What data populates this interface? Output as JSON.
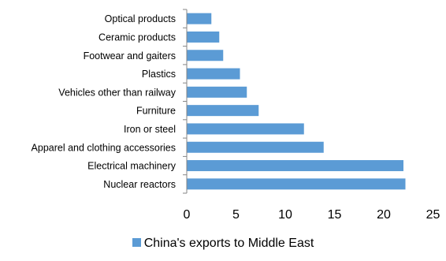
{
  "chart_data": {
    "type": "bar",
    "orientation": "horizontal",
    "categories": [
      "Nuclear reactors",
      "Electrical machinery",
      "Apparel and clothing accessories",
      "Iron or steel",
      "Furniture",
      "Vehicles other than railway",
      "Plastics",
      "Footwear and gaiters",
      "Ceramic products",
      "Optical products"
    ],
    "series": [
      {
        "name": "China's exports to Middle East",
        "values": [
          22.2,
          22.0,
          13.9,
          11.9,
          7.3,
          6.1,
          5.4,
          3.7,
          3.3,
          2.5
        ],
        "color": "#5b9bd5"
      }
    ],
    "xlim": [
      0,
      25
    ],
    "xticks": [
      "0",
      "5",
      "10",
      "15",
      "20",
      "25"
    ],
    "grid": false,
    "legend_position": "bottom"
  }
}
